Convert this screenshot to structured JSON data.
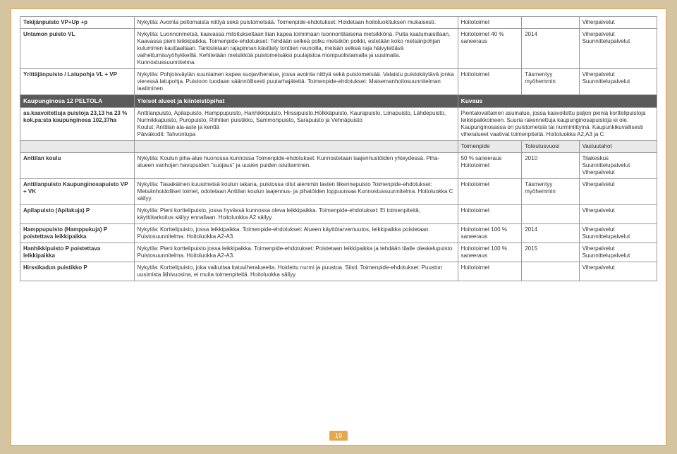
{
  "rows_top": [
    {
      "name": "Tekijänpuisto VP+Up +p",
      "desc": "Nykytila: Avointa peltomaista niittyä sekä puistometsää. Toimenpide-ehdotukset: Hoidetaan hoitoluokituksen mukaisesti.",
      "c1": "Hoitotoimet",
      "c2": "",
      "c3": "Viherpalvelut"
    },
    {
      "name": "Untamon puisto VL",
      "desc": "Nykytila: Luonnonmetsä, kaavassa mitoitukseltaan liian kapea toimimaan luonnontilaisena metsikkönä. Puita kaatumaisillaan. Kaavassa pieni leikkipaikka. Toimenpide-ehdotukset: Tehdään selkeä polku metsikön poikki, estetään koko metsänpohjan kuluminen kauttaaltaan. Tarkistetaan rajapinnan käsittely tonttien reunoilla, metsän selkeä raja häivytettävä vaihettumisvyöhykkeillä. Kehitetään metsikköä puistometsäksi puulajistoa monipuolistamalla ja uusimalla. Kunnostussuunnitelma.",
      "c1": "Hoitotoimet 40 % saneeraus",
      "c2": "2014",
      "c3": "Viherpalvelut Suunnittelupalvelut"
    },
    {
      "name": "Yrittäjänpuisto / Latupohja VL + VP",
      "desc": "Nykytila: Pohjoisväylän suuntainen kapea suojaviheralue, jossa avointa niittyä sekä puistometsää. Valaistu puistokäytävä jonka vieressä latupohja. Puistoon tuodaan säännöllisesti puutarhajätettä. Toimenpide-ehdotukset: Maisemanhoitosuunnitelman laatiminen",
      "c1": "Hoitotoimet",
      "c2": "Täsmentyy myöhemmin",
      "c3": "Viherpalvelut Suunnittelupalvelut"
    }
  ],
  "section": {
    "left": "Kaupunginosa 12 PELTOLA",
    "mid": "Yleiset alueet ja kiinteistöpihat",
    "right": "Kuvaus"
  },
  "intro": {
    "name": "as.kaavoitettuja puistoja 23,13 ha 23 % kok.pa:sta kaupunginosa 102,37ha",
    "desc": "Anttilanpuisto, Apilapuisto, Hamppupuisto, Hanhikkipuisto, Hirssipuisto,Hölkkäpuisto, Kaurapuisto, Liinapuisto, Lähdepuisto, Nurmikkapuisto, Puropuisto, Riihitien puistikko, Sammonpuisto, Sarapuisto ja Vehnäpuisto\nKoulut: Anttilan ala-aste ja kenttä\nPäiväkodit: Tahvontupa",
    "right": "Pientalovaltainen asuinalue, jossa kaavoitettu paljon pieniä korttelipuistoja leikkipaikkoineen. Suuria rakennettuja kaupunginosapuistoja ei ole.  Kaupunginosassa on puistometsiä tai nurminiittyinä. Kaupunkikuvallisesti viheralueet vaativat toimenpiteitä.  Hoitoluokka A2,A3 ja C"
  },
  "sub": {
    "c1": "Toimenpide",
    "c2": "Toteutusvuosi",
    "c3": "Vastuutahot"
  },
  "rows_bottom": [
    {
      "name": "Anttilan koulu",
      "desc": "Nykytila: Koulun piha-alue huonossa kunnossa Toimenpide-ehdotukset: Kunnostetaan laajennustöiden yhteydessä. Piha-alueen vanhojen havupuiden \"suojaus\" ja uusien puiden istuttaminen.",
      "c1": "50 % saneeraus Hoitotoimet",
      "c2": "2010",
      "c3": "Tilakeskus Suunnittelupalvelut Viherpalvelut"
    },
    {
      "name": "Anttilanpuisto Kaupunginosapuisto VP + VK",
      "desc": "Nykytila: Tasaikäinen kuusimetsä koulun takana, puistossa ollut aiemmin lasten liikennepuisto Toimenpide-ehdotukset: Metsänhoidolliset toimet, odotetaan Anttilan koulun laajennus- ja pihatöiden loppuunsaa Kunnostussuunnitelma. Hoitoluokka C säilyy.",
      "c1": "Hoitotoimet",
      "c2": "Täsmentyy myöhemmin",
      "c3": "Viherpalvelut"
    },
    {
      "name": "Apilapuisto (Apilakuja) P",
      "desc": "Nykytila: Pieni korttelipuisto, jossa hyvässä kunnossa oleva leikkipaikka. Toimenpide-ehdotukset: Ei toimenpiteitä, käyttötarkoitus säilyy ennallaan. Hoitoluokka A2 säilyy.",
      "c1": "Hoitotoimet",
      "c2": "",
      "c3": "Viherpalvelut"
    },
    {
      "name": "Hamppupuisto (Hamppukuja) P poistettava leikkipaikka",
      "desc": "Nykytila: Korttelipuisto, jossa leikkipaikka. Toimenpide-ehdotukset: Alueen käyttötarvemuutos, leikkipaikka poistetaan. Puistosuunnitelma. Hoitoluokka A2-A3.",
      "c1": "Hoitotoimet 100 % saneeraus",
      "c2": "2014",
      "c3": "Viherpalvelut Suunnittelupalvelut"
    },
    {
      "name": "Hanhikkipuisto P poistettava leikkipaikka",
      "desc": "Nykytila: Pieni korttelipuisto jossa leikkipaikka. Toimenpide-ehdotukset: Poistetaan leikkipaikka ja tehdään tilalle oleskelupuisto. Puistosuunnitelma. Hoitoluokka A2-A3.",
      "c1": "Hoitotoimet 100 % saneeraus",
      "c2": "2015",
      "c3": "Viherpalvelut Suunnittelupalvelut"
    },
    {
      "name": "Hirssikadun puistikko P",
      "desc": "Nykytila: Korttelipuisto, joka vaikuttaa katuviheralueelta. Hoidettu nurmi ja puustoa. Siisti. Toimenpide-ehdotukset: Puuston uusimista lähivuosina, ei muita toimenpiteitä. Hoitoluokka säilyy.",
      "c1": "Hoitotoimet",
      "c2": "",
      "c3": "Viherpalvelut"
    }
  ],
  "page_number": "19"
}
